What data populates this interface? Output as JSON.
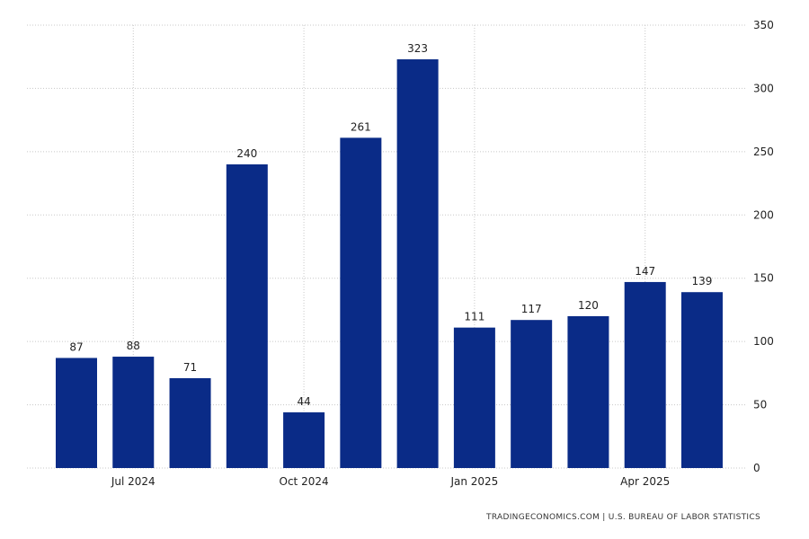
{
  "chart_data": {
    "type": "bar",
    "categories": [
      "Jun 2024",
      "Jul 2024",
      "Aug 2024",
      "Sep 2024",
      "Oct 2024",
      "Nov 2024",
      "Dec 2024",
      "Jan 2025",
      "Feb 2025",
      "Mar 2025",
      "Apr 2025",
      "May 2025"
    ],
    "values": [
      87,
      88,
      71,
      240,
      44,
      261,
      323,
      111,
      117,
      120,
      147,
      139
    ],
    "x_tick_labels": [
      {
        "label": "Jul 2024",
        "category": "Jul 2024"
      },
      {
        "label": "Oct 2024",
        "category": "Oct 2024"
      },
      {
        "label": "Jan 2025",
        "category": "Jan 2025"
      },
      {
        "label": "Apr 2025",
        "category": "Apr 2025"
      }
    ],
    "y_ticks": [
      0,
      50,
      100,
      150,
      200,
      250,
      300,
      350
    ],
    "ylim": [
      0,
      350
    ],
    "y_axis_side": "right",
    "grid": true,
    "bar_color": "#0a2b87",
    "title": "",
    "xlabel": "",
    "ylabel": ""
  },
  "source_text": "TRADINGECONOMICS.COM  |  U.S. BUREAU OF LABOR STATISTICS"
}
